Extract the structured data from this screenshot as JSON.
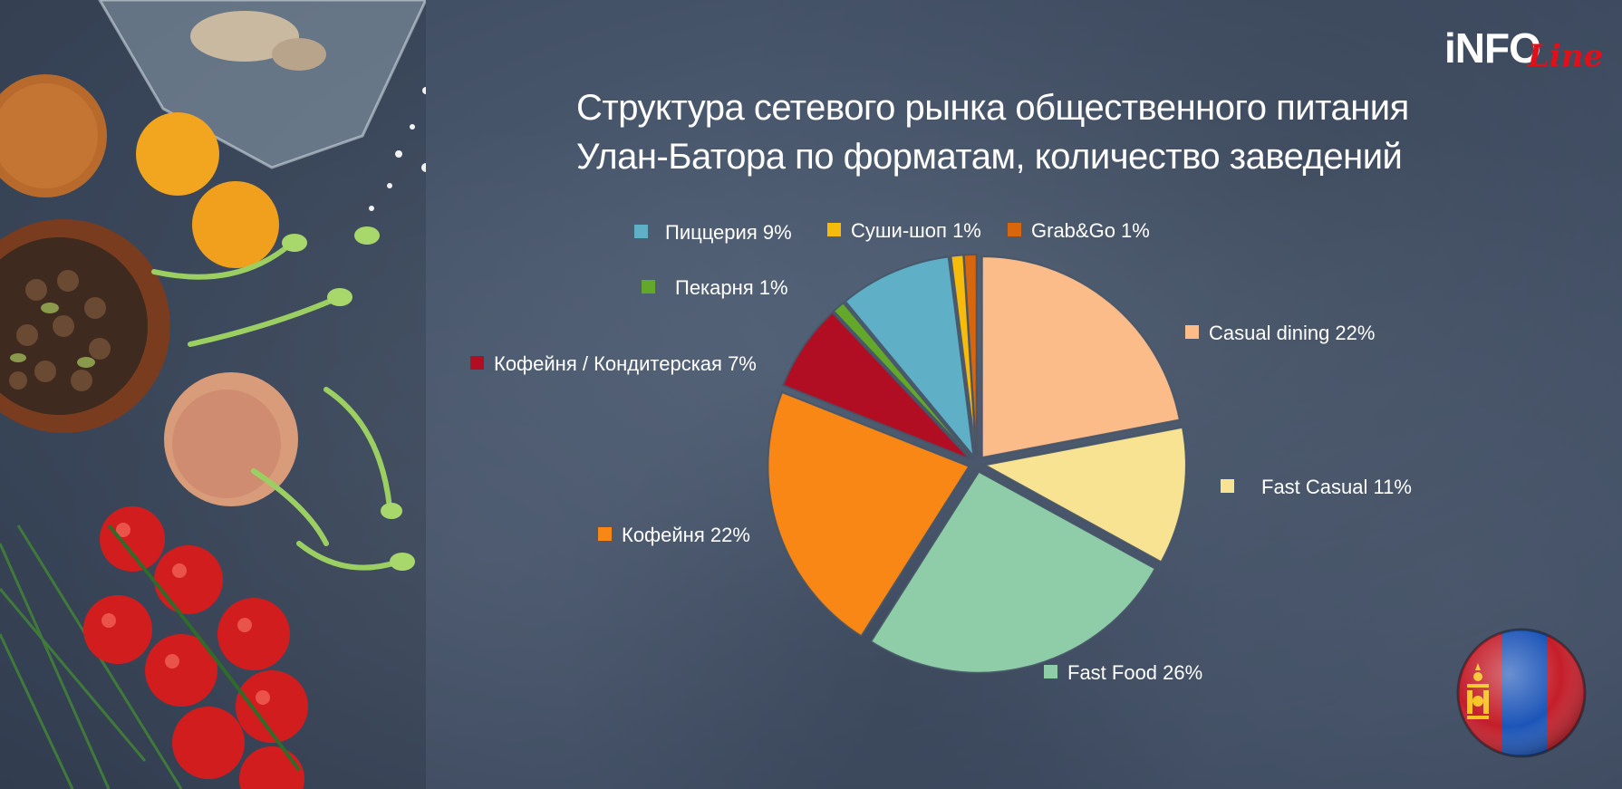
{
  "title": {
    "line1": "Структура сетевого рынка общественного питания",
    "line2": "Улан-Батора по форматам, количество заведений"
  },
  "logo": {
    "part1": "iNFO",
    "part2": "Line"
  },
  "chart_data": {
    "type": "pie",
    "title": "Структура сетевого рынка общественного питания Улан-Батора по форматам, количество заведений",
    "start_angle_deg": 0,
    "direction": "clockwise",
    "slices": [
      {
        "name": "Casual dining",
        "value": 22,
        "label": "Casual dining 22%",
        "color": "#fcbc8a"
      },
      {
        "name": "Fast Casual",
        "value": 11,
        "label": "Fast Casual 11%",
        "color": "#f8e393"
      },
      {
        "name": "Fast Food",
        "value": 26,
        "label": "Fast Food 26%",
        "color": "#8fcca8"
      },
      {
        "name": "Кофейня",
        "value": 22,
        "label": "Кофейня 22%",
        "color": "#f98716"
      },
      {
        "name": "Кофейня / Кондитерская",
        "value": 7,
        "label": "Кофейня / Кондитерская 7%",
        "color": "#b20e23"
      },
      {
        "name": "Пекарня",
        "value": 1,
        "label": "Пекарня 1%",
        "color": "#63a82a"
      },
      {
        "name": "Пиццерия",
        "value": 9,
        "label": "Пиццерия 9%",
        "color": "#5fb0c6"
      },
      {
        "name": "Суши-шоп",
        "value": 1,
        "label": "Суши-шоп 1%",
        "color": "#f7bb0c"
      },
      {
        "name": "Grab&Go",
        "value": 1,
        "label": "Grab&Go 1%",
        "color": "#d8660c"
      }
    ]
  }
}
